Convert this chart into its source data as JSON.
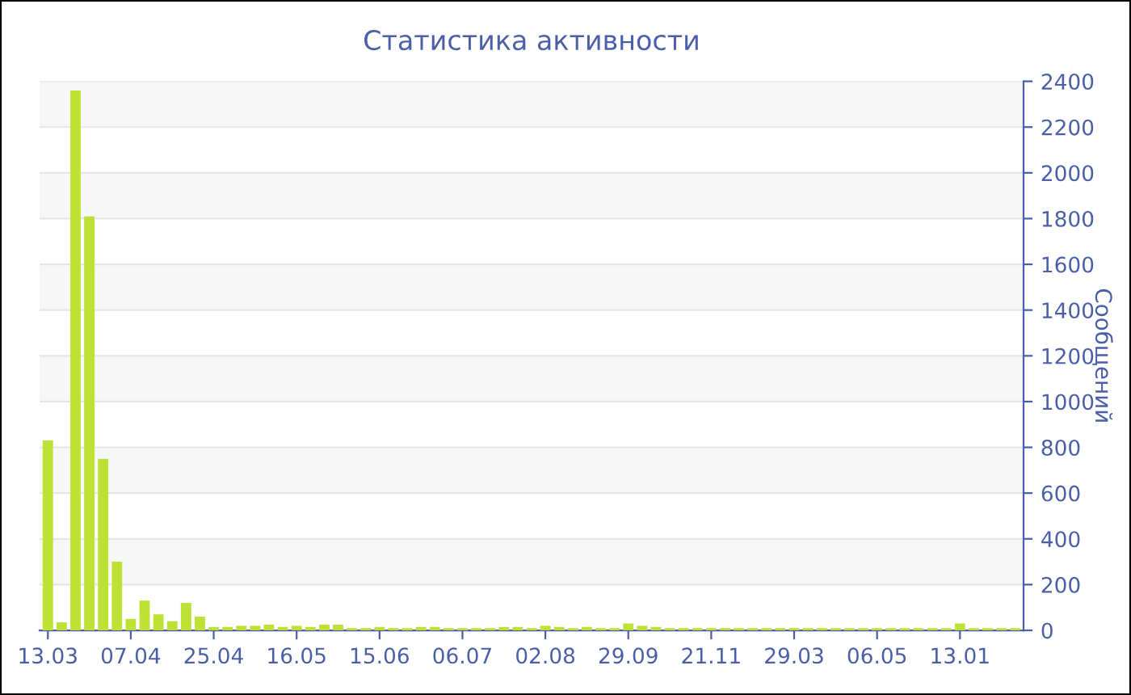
{
  "chart_data": {
    "type": "bar",
    "title": "Статистика активности",
    "ylabel": "Сообщений",
    "categories": [
      "13.03",
      null,
      null,
      null,
      null,
      null,
      "07.04",
      null,
      null,
      null,
      null,
      null,
      "25.04",
      null,
      null,
      null,
      null,
      null,
      "16.05",
      null,
      null,
      null,
      null,
      null,
      "15.06",
      null,
      null,
      null,
      null,
      null,
      "06.07",
      null,
      null,
      null,
      null,
      null,
      "02.08",
      null,
      null,
      null,
      null,
      null,
      "29.09",
      null,
      null,
      null,
      null,
      null,
      "21.11",
      null,
      null,
      null,
      null,
      null,
      "29.03",
      null,
      null,
      null,
      null,
      null,
      "06.05",
      null,
      null,
      null,
      null,
      null,
      "13.01",
      null,
      null,
      null,
      null
    ],
    "values": [
      830,
      35,
      2360,
      1810,
      750,
      300,
      50,
      130,
      70,
      40,
      120,
      60,
      15,
      15,
      20,
      20,
      25,
      15,
      20,
      15,
      25,
      25,
      10,
      10,
      15,
      10,
      10,
      15,
      15,
      10,
      10,
      10,
      10,
      15,
      15,
      10,
      20,
      15,
      10,
      15,
      10,
      10,
      30,
      20,
      15,
      10,
      10,
      10,
      10,
      10,
      10,
      10,
      10,
      10,
      10,
      10,
      10,
      10,
      10,
      10,
      10,
      10,
      10,
      10,
      10,
      10,
      30,
      10,
      10,
      10,
      10
    ],
    "color": "#bde134",
    "ylim": [
      0,
      2400
    ],
    "yticks": [
      0,
      200,
      400,
      600,
      800,
      1000,
      1200,
      1400,
      1600,
      1800,
      2000,
      2200,
      2400
    ],
    "grid": "y"
  }
}
